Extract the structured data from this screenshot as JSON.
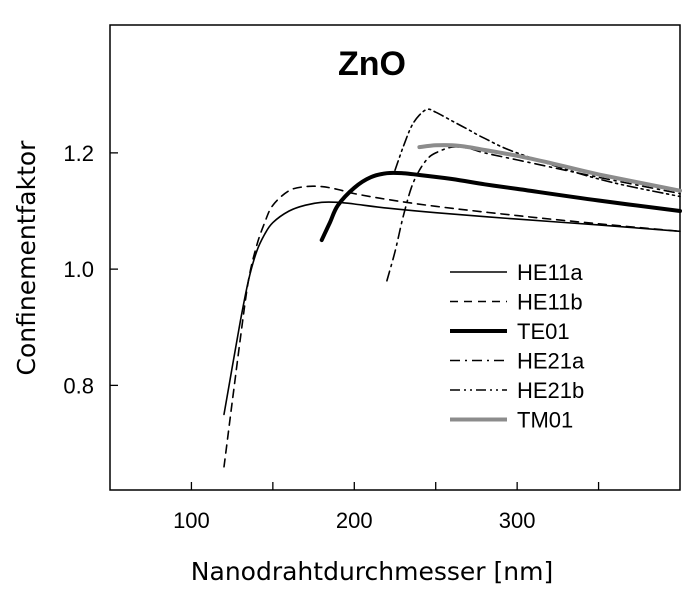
{
  "chart_data": {
    "type": "line",
    "title": "ZnO",
    "xlabel": "Nanodrahtdurchmesser [nm]",
    "ylabel": "Confinementfaktor",
    "xlim": [
      50,
      400
    ],
    "ylim": [
      0.62,
      1.42
    ],
    "xticks": [
      100,
      150,
      200,
      250,
      300,
      350
    ],
    "xtick_labels": [
      "100",
      "200",
      "300"
    ],
    "xtick_label_values": [
      100,
      200,
      300
    ],
    "yticks": [
      0.8,
      1.0,
      1.2
    ],
    "ytick_labels": [
      "0.8",
      "1.0",
      "1.2"
    ],
    "grid": false,
    "legend_position": "lower-right",
    "series": [
      {
        "name": "HE11a",
        "color": "#000000",
        "style": "solid",
        "x": [
          120,
          125,
          130,
          135,
          140,
          145,
          150,
          160,
          170,
          180,
          190,
          200,
          220,
          250,
          300,
          350,
          400
        ],
        "y": [
          0.75,
          0.83,
          0.91,
          0.98,
          1.03,
          1.06,
          1.08,
          1.1,
          1.11,
          1.115,
          1.115,
          1.112,
          1.105,
          1.097,
          1.086,
          1.076,
          1.065
        ]
      },
      {
        "name": "HE11b",
        "color": "#000000",
        "style": "dashed",
        "x": [
          120,
          125,
          130,
          135,
          140,
          145,
          150,
          160,
          170,
          180,
          190,
          200,
          220,
          250,
          300,
          350,
          400
        ],
        "y": [
          0.66,
          0.77,
          0.88,
          0.98,
          1.04,
          1.08,
          1.11,
          1.135,
          1.142,
          1.142,
          1.137,
          1.13,
          1.12,
          1.108,
          1.092,
          1.078,
          1.065
        ]
      },
      {
        "name": "TE01",
        "color": "#000000",
        "style": "thick",
        "x": [
          180,
          185,
          190,
          200,
          210,
          220,
          230,
          240,
          260,
          280,
          300,
          350,
          400
        ],
        "y": [
          1.05,
          1.08,
          1.11,
          1.14,
          1.158,
          1.165,
          1.165,
          1.162,
          1.155,
          1.146,
          1.138,
          1.118,
          1.1
        ]
      },
      {
        "name": "HE21a",
        "color": "#000000",
        "style": "dashdot",
        "x": [
          220,
          225,
          230,
          235,
          240,
          245,
          250,
          260,
          270,
          280,
          300,
          350,
          400
        ],
        "y": [
          0.98,
          1.03,
          1.09,
          1.14,
          1.17,
          1.19,
          1.2,
          1.21,
          1.208,
          1.2,
          1.188,
          1.158,
          1.13
        ]
      },
      {
        "name": "HE21b",
        "color": "#000000",
        "style": "dashdotdot",
        "x": [
          225,
          230,
          235,
          240,
          245,
          250,
          260,
          270,
          280,
          300,
          350,
          400
        ],
        "y": [
          1.17,
          1.21,
          1.245,
          1.265,
          1.275,
          1.27,
          1.255,
          1.24,
          1.225,
          1.2,
          1.155,
          1.125
        ]
      },
      {
        "name": "TM01",
        "color": "#8c8c8c",
        "style": "thick",
        "x": [
          240,
          250,
          260,
          270,
          280,
          300,
          320,
          350,
          400
        ],
        "y": [
          1.21,
          1.213,
          1.213,
          1.21,
          1.205,
          1.195,
          1.183,
          1.163,
          1.135
        ]
      }
    ]
  }
}
